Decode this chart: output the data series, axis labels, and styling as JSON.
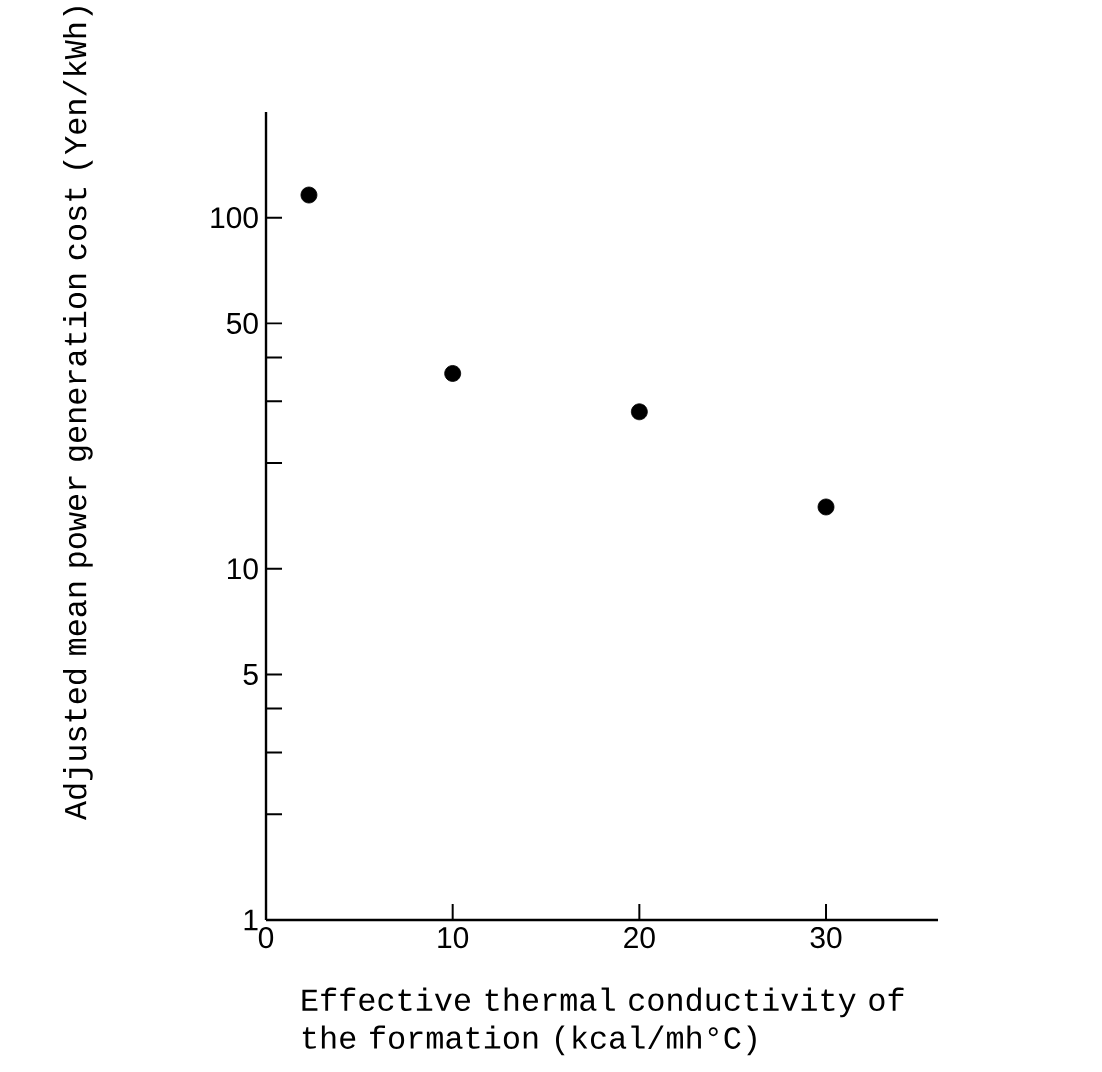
{
  "chart_data": {
    "type": "scatter",
    "xlabel": "Effective thermal conductivity of the formation (kcal/mh°C)",
    "ylabel": "Adjusted mean power generation cost (Yen/kWh)",
    "x": [
      2.3,
      10,
      20,
      30
    ],
    "values": [
      116,
      36,
      28,
      15
    ],
    "color": "#000000",
    "marker": "circle",
    "log": "y",
    "xlim": [
      0,
      36
    ],
    "xticks": [
      0,
      10,
      20,
      30
    ],
    "ylim": [
      1,
      200
    ],
    "yticks": [
      1,
      {
        "value": 2,
        "label": null
      },
      {
        "value": 3,
        "label": null
      },
      {
        "value": 4,
        "label": null
      },
      5,
      10,
      {
        "value": 20,
        "label": null
      },
      {
        "value": 30,
        "label": null
      },
      {
        "value": 40,
        "label": null
      },
      50,
      100
    ]
  }
}
